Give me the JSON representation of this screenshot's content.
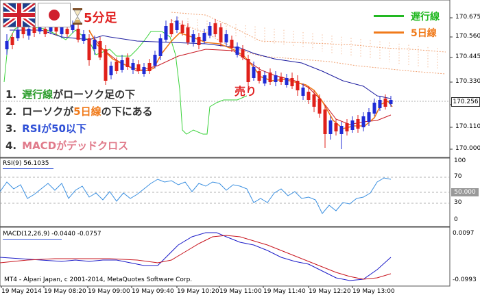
{
  "header": {
    "timeframe_label": "5分足",
    "hourglass_icon": "hourglass-icon",
    "flags": [
      "uk-flag-icon",
      "japan-flag-icon"
    ]
  },
  "legend": [
    {
      "label": "遅行線",
      "color": "#22b822"
    },
    {
      "label": "5日線",
      "color": "#f07a1a"
    }
  ],
  "annotation": {
    "sell_label": "売り"
  },
  "conditions": [
    {
      "num": "1.",
      "parts": [
        {
          "text": "遅行線",
          "style": "green"
        },
        {
          "text": "がローソク足の下",
          "style": "n"
        }
      ]
    },
    {
      "num": "2.",
      "parts": [
        {
          "text": "ローソクが",
          "style": "n"
        },
        {
          "text": "5日線",
          "style": "orange"
        },
        {
          "text": "の下にある",
          "style": "n"
        }
      ]
    },
    {
      "num": "3.",
      "parts": [
        {
          "text": "RSIが50以下",
          "style": "blue"
        }
      ]
    },
    {
      "num": "4.",
      "parts": [
        {
          "text": "MACDがデッドクロス",
          "style": "pink"
        }
      ]
    }
  ],
  "price_axis": {
    "ticks": [
      "170.675",
      "170.560",
      "170.445",
      "170.330",
      "170.220",
      "170.110",
      "170.000"
    ],
    "current_price": "170.256"
  },
  "rsi_panel": {
    "label": "RSI(9) 56.1035",
    "ticks": [
      "100",
      "70",
      "30",
      "0"
    ],
    "level_box": "50.000"
  },
  "macd_panel": {
    "label": "MACD(12,26,9) -0.0440 -0.0757",
    "ticks": [
      "0.0097",
      "-0.0993"
    ],
    "copyright": "MT4 - Alpari Japan, c 2001-2014, MetaQuotes Software Corp."
  },
  "time_axis": [
    "19 May 2014",
    "19 May 08:20",
    "19 May 09:00",
    "19 May 09:40",
    "19 May 10:20",
    "19 May 11:00",
    "19 May 11:40",
    "19 May 12:20",
    "19 May 13:00"
  ],
  "colors": {
    "bull_candle": "#1f2bd6",
    "bear_candle": "#e0201a",
    "ma_line": "#f07a1a",
    "chikou_line": "#3ad23a",
    "kijun_line": "#1a1a9e",
    "tenkan_line": "#c8141e",
    "kumo": "#f0a070",
    "rsi_line": "#3a8fe0",
    "macd_main": "#1a1ac8",
    "macd_signal": "#c8141e"
  }
}
